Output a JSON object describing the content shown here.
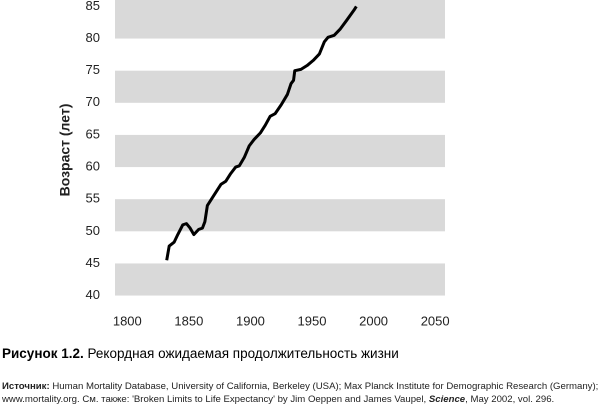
{
  "chart_data": {
    "type": "line",
    "y_label": "Возраст (лет)",
    "x": [
      1832,
      1834,
      1838,
      1841,
      1845,
      1848,
      1851,
      1854,
      1858,
      1861,
      1863,
      1865,
      1870,
      1876,
      1880,
      1884,
      1888,
      1891,
      1895,
      1899,
      1903,
      1908,
      1912,
      1916,
      1920,
      1925,
      1930,
      1933,
      1935,
      1936,
      1941,
      1946,
      1951,
      1956,
      1960,
      1963,
      1968,
      1973,
      1978,
      1984,
      1986
    ],
    "series": [
      {
        "color": "#000000",
        "values": [
          45.5,
          47.7,
          48.3,
          49.5,
          51,
          51.2,
          50.5,
          49.5,
          50.3,
          50.5,
          51.5,
          54,
          55.5,
          57.3,
          57.8,
          59,
          60,
          60.2,
          61.5,
          63.3,
          64.3,
          65.3,
          66.5,
          67.9,
          68.3,
          69.7,
          71.3,
          73,
          73.5,
          75,
          75.2,
          75.8,
          76.6,
          77.6,
          79.5,
          80.2,
          80.5,
          81.5,
          82.8,
          84.4,
          85
        ]
      }
    ],
    "xlim": [
      1790,
      2058
    ],
    "ylim": [
      39,
      86
    ],
    "xticks": [
      1800,
      1850,
      1900,
      1950,
      2000,
      2050
    ],
    "yticks": [
      40,
      45,
      50,
      55,
      60,
      65,
      70,
      75,
      80,
      85
    ],
    "band_color": "#d9d9d9"
  },
  "caption": {
    "number": "Рисунок 1.2.",
    "text": "Рекордная ожидаемая продолжительность жизни"
  },
  "source": {
    "label": "Источник:",
    "line1": "Human Mortality Database, University of California, Berkeley (USA); Max Planck Institute for Demographic Research (Germany);",
    "line2a": "www.mortality.org. См. также: 'Broken Limits to Life Expectancy' by Jim Oeppen and James Vaupel, ",
    "line2b": "Science",
    "line2c": ", May 2002, vol. 296."
  }
}
